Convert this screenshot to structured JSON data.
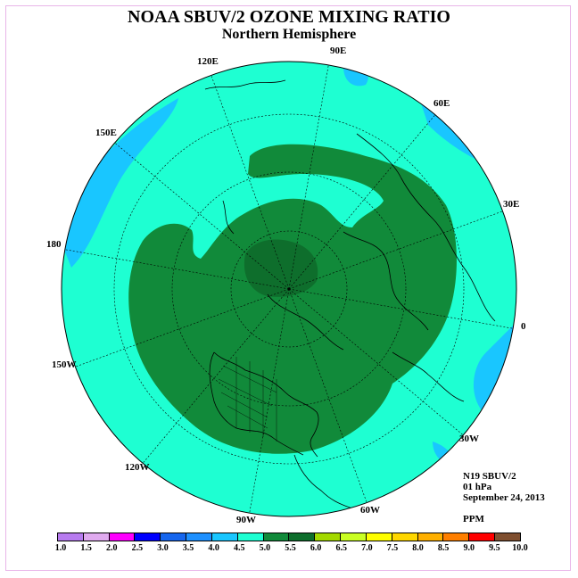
{
  "title": "NOAA SBUV/2 OZONE MIXING RATIO",
  "subtitle": "Northern Hemisphere",
  "lon_labels": [
    "90E",
    "60E",
    "30E",
    "0",
    "30W",
    "60W",
    "90W",
    "120W",
    "150W",
    "180",
    "150E",
    "120E"
  ],
  "info": {
    "instrument": "N19 SBUV/2",
    "level": "01 hPa",
    "date": "September 24, 2013",
    "units": "PPM"
  },
  "colorbar": {
    "ticks": [
      "1.0",
      "1.5",
      "2.0",
      "2.5",
      "3.0",
      "3.5",
      "4.0",
      "4.5",
      "5.0",
      "5.5",
      "6.0",
      "6.5",
      "7.0",
      "7.5",
      "8.0",
      "8.5",
      "9.0",
      "9.5",
      "10.0"
    ],
    "colors": [
      "#b77bef",
      "#e0aaef",
      "#ff00ff",
      "#0000ff",
      "#1666ee",
      "#1e90ff",
      "#19c6ff",
      "#1effd2",
      "#118a3a",
      "#0e6e2c",
      "#a3d900",
      "#caff23",
      "#ffff00",
      "#ffd700",
      "#ffb000",
      "#ff7f00",
      "#ff0000",
      "#7f4f2f"
    ]
  },
  "map_colors": {
    "background": "#1effd2",
    "low": "#19c6ff",
    "high": "#118a3a",
    "highest": "#0e6e2c"
  }
}
